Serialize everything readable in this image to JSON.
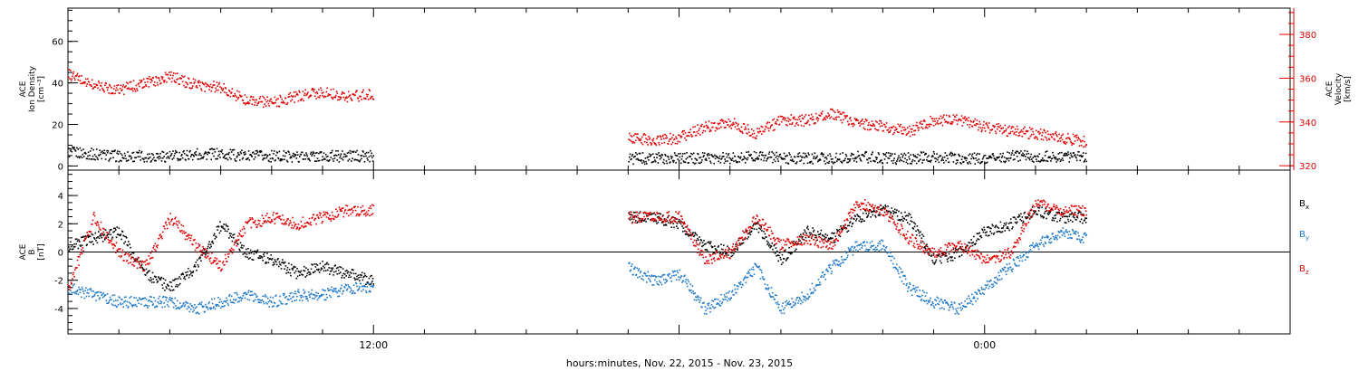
{
  "chart_data": [
    {
      "type": "scatter",
      "panel": "top",
      "ylabel_lines": [
        "ACE",
        "Ion Density",
        "[cm⁻³]"
      ],
      "ylim": [
        -2,
        76
      ],
      "yticks": [
        0,
        20,
        40,
        60
      ],
      "ytick_labels": [
        "0",
        "20",
        "40",
        "60"
      ],
      "y2label_lines": [
        "ACE",
        "Velocity",
        "[km/s]"
      ],
      "y2lim": [
        318,
        392
      ],
      "y2ticks": [
        320,
        340,
        360,
        380
      ],
      "y2tick_labels": [
        "320",
        "340",
        "360",
        "380"
      ],
      "series": [
        {
          "name": "",
          "axis": "left",
          "color": "#000000",
          "x": [
            0.0,
            0.5,
            1.0,
            1.5,
            2.0,
            2.5,
            3.0,
            3.5,
            4.0,
            4.5,
            5.0,
            5.5,
            6.0,
            6.5,
            7.0,
            7.5,
            8.0,
            8.5,
            9.0,
            9.5,
            10.0,
            10.5,
            11.0,
            11.5,
            12.0,
            12.5,
            13.0,
            13.5,
            14.0,
            14.5,
            15.0,
            15.5,
            16.0,
            16.5,
            17.0,
            17.5,
            18.0,
            18.5,
            19.0,
            19.5,
            20.0
          ],
          "y": [
            7,
            6,
            5,
            5,
            5,
            6,
            6,
            5,
            5,
            5,
            5,
            5,
            5,
            null,
            null,
            null,
            null,
            null,
            null,
            null,
            null,
            null,
            4,
            4,
            4,
            4,
            4,
            5,
            4,
            4,
            4,
            5,
            4,
            4,
            5,
            4,
            4,
            5,
            5,
            5,
            5
          ]
        },
        {
          "name": "",
          "axis": "right",
          "color": "#e00000",
          "x": [
            0.0,
            0.5,
            1.0,
            1.5,
            2.0,
            2.5,
            3.0,
            3.5,
            4.0,
            4.5,
            5.0,
            5.5,
            6.0,
            6.5,
            7.0,
            7.5,
            8.0,
            8.5,
            9.0,
            9.5,
            10.0,
            10.5,
            11.0,
            11.5,
            12.0,
            12.5,
            13.0,
            13.5,
            14.0,
            14.5,
            15.0,
            15.5,
            16.0,
            16.5,
            17.0,
            17.5,
            18.0,
            18.5,
            19.0,
            19.5,
            20.0
          ],
          "y": [
            362,
            357,
            355,
            358,
            361,
            357,
            356,
            350,
            349,
            352,
            354,
            352,
            353,
            null,
            null,
            null,
            null,
            null,
            null,
            null,
            null,
            null,
            333,
            332,
            333,
            338,
            340,
            335,
            341,
            341,
            344,
            340,
            338,
            336,
            341,
            341,
            338,
            336,
            335,
            333,
            331
          ]
        }
      ]
    },
    {
      "type": "scatter",
      "panel": "bottom",
      "ylabel_lines": [
        "ACE",
        "B",
        "[nT]"
      ],
      "ylim": [
        -5.8,
        5.8
      ],
      "yticks": [
        -4,
        -2,
        0,
        2,
        4
      ],
      "ytick_labels": [
        "-4",
        "-2",
        "0",
        "2",
        "4"
      ],
      "xlabel": "hours:minutes, Nov. 22, 2015 - Nov. 23, 2015",
      "xlim": [
        0,
        24
      ],
      "xticks": [
        0,
        6,
        12,
        18
      ],
      "xtick_labels": [
        "",
        "12:00",
        "",
        "0:00"
      ],
      "series": [
        {
          "name": "Bx",
          "color": "#000000",
          "x": [
            0.0,
            0.5,
            1.0,
            1.5,
            2.0,
            2.5,
            3.0,
            3.5,
            4.0,
            4.5,
            5.0,
            5.5,
            6.0,
            6.5,
            7.0,
            7.5,
            8.0,
            8.5,
            9.0,
            9.5,
            10.0,
            10.5,
            11.0,
            11.5,
            12.0,
            12.5,
            13.0,
            13.5,
            14.0,
            14.5,
            15.0,
            15.5,
            16.0,
            16.5,
            17.0,
            17.5,
            18.0,
            18.5,
            19.0,
            19.5,
            20.0
          ],
          "y": [
            0.5,
            1.0,
            1.5,
            -1.5,
            -2.5,
            -1.0,
            2.0,
            0.0,
            -0.5,
            -1.5,
            -1.0,
            -1.5,
            -2.0,
            null,
            null,
            null,
            null,
            null,
            null,
            null,
            null,
            null,
            2.5,
            2.5,
            2.0,
            0.5,
            0.0,
            2.0,
            -0.5,
            1.5,
            1.0,
            2.5,
            3.0,
            2.5,
            -0.5,
            0.0,
            1.5,
            2.0,
            3.0,
            2.5,
            2.5
          ]
        },
        {
          "name": "By",
          "color": "#1e78c8",
          "x": [
            0.0,
            0.5,
            1.0,
            1.5,
            2.0,
            2.5,
            3.0,
            3.5,
            4.0,
            4.5,
            5.0,
            5.5,
            6.0,
            6.5,
            7.0,
            7.5,
            8.0,
            8.5,
            9.0,
            9.5,
            10.0,
            10.5,
            11.0,
            11.5,
            12.0,
            12.5,
            13.0,
            13.5,
            14.0,
            14.5,
            15.0,
            15.5,
            16.0,
            16.5,
            17.0,
            17.5,
            18.0,
            18.5,
            19.0,
            19.5,
            20.0
          ],
          "y": [
            -2.5,
            -3.0,
            -3.5,
            -3.5,
            -3.5,
            -4.0,
            -3.5,
            -3.0,
            -3.5,
            -3.0,
            -3.0,
            -2.5,
            -2.5,
            null,
            null,
            null,
            null,
            null,
            null,
            null,
            null,
            null,
            -1.0,
            -2.0,
            -1.5,
            -4.0,
            -3.0,
            -1.0,
            -4.0,
            -3.0,
            -1.0,
            0.5,
            0.5,
            -2.5,
            -3.5,
            -4.0,
            -2.5,
            -1.0,
            0.5,
            1.5,
            1.0
          ]
        },
        {
          "name": "Bz",
          "color": "#e00000",
          "x": [
            0.0,
            0.5,
            1.0,
            1.5,
            2.0,
            2.5,
            3.0,
            3.5,
            4.0,
            4.5,
            5.0,
            5.5,
            6.0,
            6.5,
            7.0,
            7.5,
            8.0,
            8.5,
            9.0,
            9.5,
            10.0,
            10.5,
            11.0,
            11.5,
            12.0,
            12.5,
            13.0,
            13.5,
            14.0,
            14.5,
            15.0,
            15.5,
            16.0,
            16.5,
            17.0,
            17.5,
            18.0,
            18.5,
            19.0,
            19.5,
            20.0
          ],
          "y": [
            -2.5,
            2.5,
            0.0,
            -1.0,
            2.5,
            0.5,
            -1.0,
            2.0,
            2.5,
            2.0,
            2.5,
            3.0,
            3.0,
            null,
            null,
            null,
            null,
            null,
            null,
            null,
            null,
            null,
            2.5,
            2.5,
            2.5,
            -0.5,
            0.0,
            2.5,
            0.5,
            1.0,
            0.5,
            3.5,
            3.0,
            1.0,
            0.0,
            0.5,
            -0.5,
            0.0,
            3.5,
            3.0,
            3.0
          ]
        }
      ]
    }
  ],
  "legend": [
    {
      "base": "B",
      "sub": "x",
      "color": "#000000"
    },
    {
      "base": "B",
      "sub": "y",
      "color": "#1e78c8"
    },
    {
      "base": "B",
      "sub": "z",
      "color": "#e00000"
    }
  ]
}
